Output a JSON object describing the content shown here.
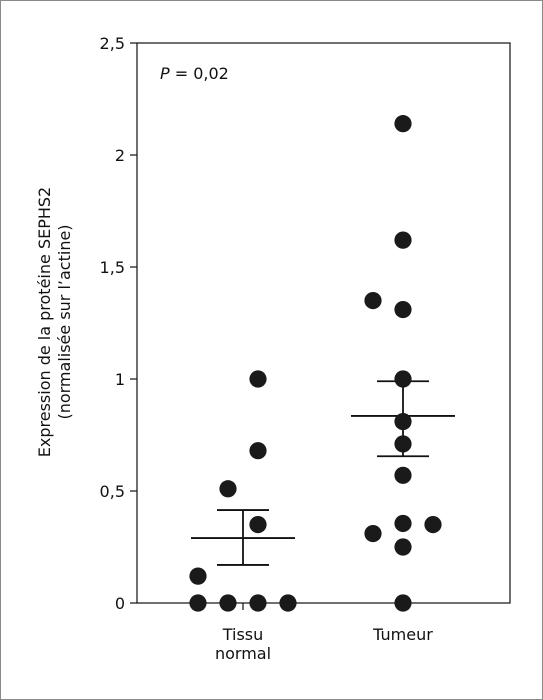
{
  "chart_data": {
    "type": "scatter",
    "ylabel_line1": "Expression de la protéine SEPHS2",
    "ylabel_line2": "(normalisée sur l’actine)",
    "ylim": [
      0,
      2.5
    ],
    "yticks": [
      {
        "value": 0,
        "label": "0"
      },
      {
        "value": 0.5,
        "label": "0,5"
      },
      {
        "value": 1,
        "label": "1"
      },
      {
        "value": 1.5,
        "label": "1,5"
      },
      {
        "value": 2,
        "label": "2"
      },
      {
        "value": 2.5,
        "label": "2,5"
      }
    ],
    "categories": [
      {
        "label_lines": [
          "Tissu",
          "normal"
        ]
      },
      {
        "label_lines": [
          "Tumeur"
        ]
      }
    ],
    "annotation": {
      "italic": "P",
      "rest": " = 0,02"
    },
    "groups": [
      {
        "points": [
          {
            "x": 0.0,
            "y": 0
          },
          {
            "x": 1.0,
            "y": 0
          },
          {
            "x": 2.0,
            "y": 0
          },
          {
            "x": 3.0,
            "y": 0
          },
          {
            "x": 0.0,
            "y": 0.12
          },
          {
            "x": 2.0,
            "y": 0.35
          },
          {
            "x": 1.0,
            "y": 0.51
          },
          {
            "x": 2.0,
            "y": 0.68
          },
          {
            "x": 2.0,
            "y": 1.0
          }
        ],
        "mean": 0.29,
        "sem_low": 0.17,
        "sem_high": 0.415
      },
      {
        "points": [
          {
            "x": 1.0,
            "y": 0
          },
          {
            "x": 1.0,
            "y": 0.25
          },
          {
            "x": 0.0,
            "y": 0.31
          },
          {
            "x": 1.0,
            "y": 0.355
          },
          {
            "x": 2.0,
            "y": 0.35
          },
          {
            "x": 1.0,
            "y": 0.57
          },
          {
            "x": 1.0,
            "y": 0.71
          },
          {
            "x": 1.0,
            "y": 0.81
          },
          {
            "x": 1.0,
            "y": 1.0
          },
          {
            "x": 1.0,
            "y": 1.31
          },
          {
            "x": 0.0,
            "y": 1.35
          },
          {
            "x": 1.0,
            "y": 1.62
          },
          {
            "x": 1.0,
            "y": 2.14
          }
        ],
        "mean": 0.835,
        "sem_low": 0.655,
        "sem_high": 0.99
      }
    ]
  }
}
